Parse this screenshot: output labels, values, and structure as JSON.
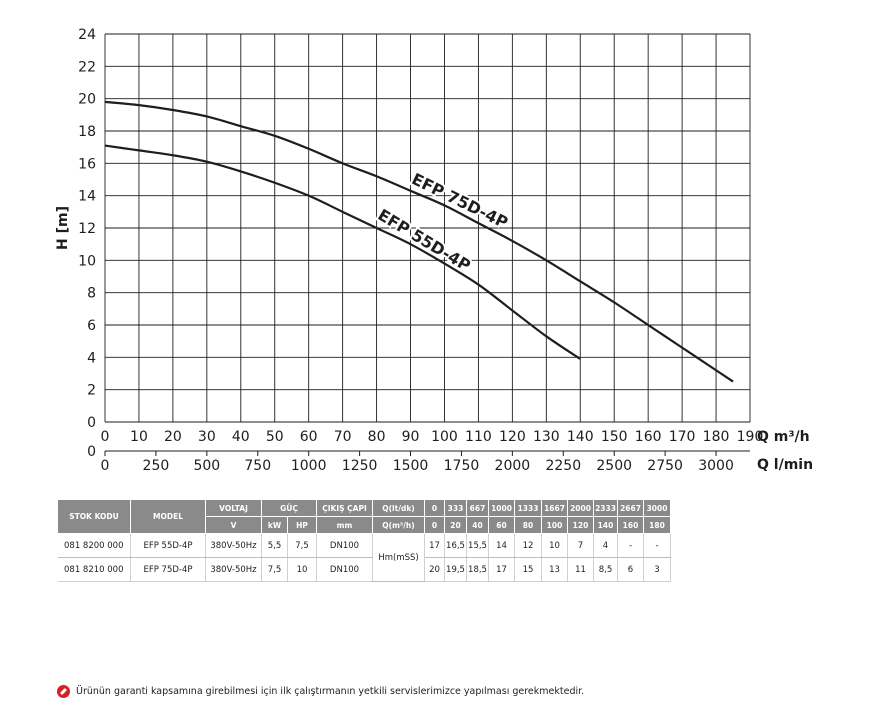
{
  "chart_data": {
    "type": "line",
    "ylabel": "H [m]",
    "xlabel": "Q m³/h",
    "x2label": "Q l/min",
    "xlim": [
      0,
      190
    ],
    "ylim": [
      0,
      24
    ],
    "x_ticks": [
      0,
      10,
      20,
      30,
      40,
      50,
      60,
      70,
      80,
      90,
      100,
      110,
      120,
      130,
      140,
      150,
      160,
      170,
      180,
      190
    ],
    "y_ticks": [
      0,
      2,
      4,
      6,
      8,
      10,
      12,
      14,
      16,
      18,
      20,
      22,
      24
    ],
    "x2_ticks": [
      0,
      250,
      500,
      750,
      1000,
      1250,
      1500,
      1750,
      2000,
      2250,
      2500,
      2750,
      3000
    ],
    "y2_tick": "0",
    "grid": true,
    "series": [
      {
        "name": "EFP 75D-4P",
        "x": [
          0,
          10,
          20,
          30,
          40,
          50,
          60,
          70,
          80,
          90,
          100,
          110,
          120,
          130,
          140,
          150,
          160,
          170,
          180,
          185
        ],
        "y": [
          19.8,
          19.6,
          19.3,
          18.9,
          18.3,
          17.7,
          16.9,
          16.0,
          15.2,
          14.3,
          13.4,
          12.3,
          11.2,
          10.0,
          8.7,
          7.4,
          6.0,
          4.6,
          3.2,
          2.5
        ]
      },
      {
        "name": "EFP 55D-4P",
        "x": [
          0,
          10,
          20,
          30,
          40,
          50,
          60,
          70,
          80,
          90,
          100,
          110,
          120,
          130,
          140
        ],
        "y": [
          17.1,
          16.8,
          16.5,
          16.1,
          15.5,
          14.8,
          14.0,
          13.0,
          12.0,
          11.0,
          9.8,
          8.5,
          6.9,
          5.3,
          3.9
        ]
      }
    ]
  },
  "table": {
    "h_stok": "STOK KODU",
    "h_model": "MODEL",
    "h_voltaj": "VOLTAJ",
    "h_guc": "GÜÇ",
    "h_cikis": "ÇIKIŞ ÇAPI",
    "h_q_ltdk": "Q(lt/dk)",
    "h_v": "V",
    "h_kw": "kW",
    "h_hp": "HP",
    "h_mm": "mm",
    "h_q_m3h": "Q(m³/h)",
    "q_ltdk": [
      "0",
      "333",
      "667",
      "1000",
      "1333",
      "1667",
      "2000",
      "2333",
      "2667",
      "3000"
    ],
    "q_m3h": [
      "0",
      "20",
      "40",
      "60",
      "80",
      "100",
      "120",
      "140",
      "160",
      "180"
    ],
    "hm_label": "Hm(mSS)",
    "rows": [
      {
        "stok": "081 8200 000",
        "model": "EFP 55D-4P",
        "voltaj": "380V-50Hz",
        "kw": "5,5",
        "hp": "7,5",
        "cikis": "DN100",
        "h": [
          "17",
          "16,5",
          "15,5",
          "14",
          "12",
          "10",
          "7",
          "4",
          "-",
          "-"
        ]
      },
      {
        "stok": "081 8210 000",
        "model": "EFP 75D-4P",
        "voltaj": "380V-50Hz",
        "kw": "7,5",
        "hp": "10",
        "cikis": "DN100",
        "h": [
          "20",
          "19,5",
          "18,5",
          "17",
          "15",
          "13",
          "11",
          "8,5",
          "6",
          "3"
        ]
      }
    ]
  },
  "note": "Ürünün garanti kapsamına girebilmesi için ilk çalıştırmanın yetkili servislerimizce yapılması gerekmektedir.",
  "icons": {
    "note_icon": "warning-wrench-icon"
  },
  "colors": {
    "header": "#8a8a8a",
    "icon": "#d62027"
  }
}
